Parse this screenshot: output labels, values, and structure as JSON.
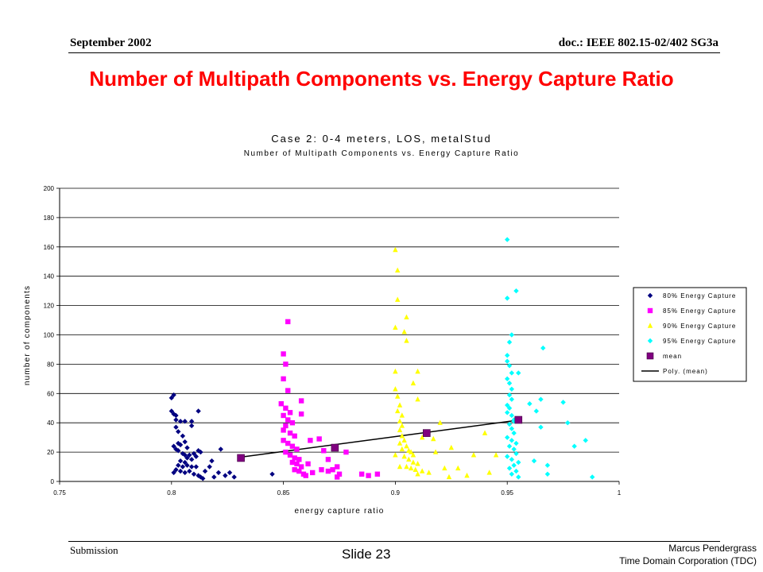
{
  "header": {
    "date": "September 2002",
    "doc": "doc.: IEEE 802.15-02/402 SG3a"
  },
  "slide_title": "Number of Multipath Components vs. Energy Capture Ratio",
  "footer": {
    "submission": "Submission",
    "slide": "Slide 23",
    "author": "Marcus Pendergrass",
    "org": "Time Domain Corporation (TDC)"
  },
  "colors": {
    "title": "#ff0000",
    "s80": "#000080",
    "s85": "#ff00ff",
    "s90": "#ffff00",
    "s95": "#00ffff",
    "mean": "#800080"
  },
  "chart_data": {
    "type": "scatter",
    "title": "Case 2: 0-4 meters, LOS, metalStud",
    "subtitle": "Number of Multipath Components vs. Energy Capture Ratio",
    "xlabel": "energy capture ratio",
    "ylabel": "number of components",
    "xlim": [
      0.75,
      1
    ],
    "ylim": [
      0,
      200
    ],
    "x_ticks": [
      "0.75",
      "0.8",
      "0.85",
      "0.9",
      "0.95",
      "1"
    ],
    "y_ticks": [
      "0",
      "20",
      "40",
      "60",
      "80",
      "100",
      "120",
      "140",
      "160",
      "180",
      "200"
    ],
    "grid": "horizontal",
    "legend_position": "right",
    "series": [
      {
        "name": "80% Energy Capture",
        "marker": "diamond",
        "color": "#000080",
        "points": [
          [
            0.8,
            57
          ],
          [
            0.801,
            59
          ],
          [
            0.8,
            48
          ],
          [
            0.801,
            46
          ],
          [
            0.802,
            45
          ],
          [
            0.802,
            42
          ],
          [
            0.804,
            41
          ],
          [
            0.806,
            41
          ],
          [
            0.809,
            41
          ],
          [
            0.809,
            38
          ],
          [
            0.812,
            48
          ],
          [
            0.802,
            37
          ],
          [
            0.803,
            34
          ],
          [
            0.805,
            31
          ],
          [
            0.806,
            27
          ],
          [
            0.804,
            25
          ],
          [
            0.801,
            24
          ],
          [
            0.802,
            22
          ],
          [
            0.803,
            21
          ],
          [
            0.805,
            19
          ],
          [
            0.806,
            18
          ],
          [
            0.807,
            16
          ],
          [
            0.808,
            18
          ],
          [
            0.81,
            19
          ],
          [
            0.811,
            17
          ],
          [
            0.812,
            21
          ],
          [
            0.813,
            20
          ],
          [
            0.809,
            15
          ],
          [
            0.806,
            13
          ],
          [
            0.804,
            14
          ],
          [
            0.803,
            11
          ],
          [
            0.805,
            10
          ],
          [
            0.807,
            11
          ],
          [
            0.809,
            10
          ],
          [
            0.811,
            10
          ],
          [
            0.802,
            8
          ],
          [
            0.804,
            7
          ],
          [
            0.806,
            6
          ],
          [
            0.808,
            7
          ],
          [
            0.81,
            5
          ],
          [
            0.812,
            4
          ],
          [
            0.813,
            3
          ],
          [
            0.815,
            7
          ],
          [
            0.817,
            10
          ],
          [
            0.818,
            14
          ],
          [
            0.819,
            3
          ],
          [
            0.821,
            6
          ],
          [
            0.822,
            22
          ],
          [
            0.824,
            4
          ],
          [
            0.826,
            6
          ],
          [
            0.828,
            3
          ],
          [
            0.803,
            26
          ],
          [
            0.807,
            23
          ],
          [
            0.801,
            6
          ],
          [
            0.814,
            2
          ],
          [
            0.845,
            5
          ]
        ]
      },
      {
        "name": "85% Energy Capture",
        "marker": "square",
        "color": "#ff00ff",
        "points": [
          [
            0.852,
            109
          ],
          [
            0.85,
            87
          ],
          [
            0.851,
            80
          ],
          [
            0.85,
            70
          ],
          [
            0.852,
            62
          ],
          [
            0.849,
            53
          ],
          [
            0.851,
            50
          ],
          [
            0.853,
            47
          ],
          [
            0.85,
            45
          ],
          [
            0.852,
            42
          ],
          [
            0.854,
            40
          ],
          [
            0.851,
            38
          ],
          [
            0.85,
            35
          ],
          [
            0.853,
            33
          ],
          [
            0.855,
            31
          ],
          [
            0.85,
            28
          ],
          [
            0.852,
            26
          ],
          [
            0.854,
            24
          ],
          [
            0.856,
            22
          ],
          [
            0.851,
            20
          ],
          [
            0.853,
            18
          ],
          [
            0.855,
            16
          ],
          [
            0.857,
            15
          ],
          [
            0.854,
            13
          ],
          [
            0.856,
            12
          ],
          [
            0.858,
            10
          ],
          [
            0.855,
            8
          ],
          [
            0.857,
            7
          ],
          [
            0.859,
            5
          ],
          [
            0.86,
            4
          ],
          [
            0.858,
            55
          ],
          [
            0.858,
            46
          ],
          [
            0.862,
            28
          ],
          [
            0.866,
            29
          ],
          [
            0.868,
            21
          ],
          [
            0.87,
            15
          ],
          [
            0.87,
            7
          ],
          [
            0.872,
            8
          ],
          [
            0.874,
            10
          ],
          [
            0.875,
            5
          ],
          [
            0.878,
            20
          ],
          [
            0.874,
            3
          ],
          [
            0.867,
            8
          ],
          [
            0.885,
            5
          ],
          [
            0.888,
            4
          ],
          [
            0.892,
            5
          ],
          [
            0.861,
            12
          ],
          [
            0.863,
            6
          ]
        ]
      },
      {
        "name": "90% Energy Capture",
        "marker": "triangle",
        "color": "#ffff00",
        "points": [
          [
            0.9,
            158
          ],
          [
            0.901,
            144
          ],
          [
            0.901,
            124
          ],
          [
            0.905,
            112
          ],
          [
            0.9,
            105
          ],
          [
            0.904,
            102
          ],
          [
            0.905,
            96
          ],
          [
            0.9,
            75
          ],
          [
            0.91,
            75
          ],
          [
            0.908,
            67
          ],
          [
            0.9,
            63
          ],
          [
            0.901,
            58
          ],
          [
            0.91,
            56
          ],
          [
            0.901,
            48
          ],
          [
            0.903,
            45
          ],
          [
            0.902,
            41
          ],
          [
            0.903,
            38
          ],
          [
            0.902,
            35
          ],
          [
            0.903,
            31
          ],
          [
            0.904,
            28
          ],
          [
            0.902,
            26
          ],
          [
            0.905,
            24
          ],
          [
            0.903,
            22
          ],
          [
            0.906,
            21
          ],
          [
            0.907,
            20
          ],
          [
            0.908,
            18
          ],
          [
            0.904,
            17
          ],
          [
            0.906,
            15
          ],
          [
            0.908,
            13
          ],
          [
            0.91,
            12
          ],
          [
            0.905,
            10
          ],
          [
            0.907,
            9
          ],
          [
            0.909,
            8
          ],
          [
            0.912,
            7
          ],
          [
            0.91,
            5
          ],
          [
            0.902,
            10
          ],
          [
            0.9,
            18
          ],
          [
            0.92,
            40
          ],
          [
            0.917,
            29
          ],
          [
            0.918,
            20
          ],
          [
            0.925,
            23
          ],
          [
            0.922,
            9
          ],
          [
            0.928,
            9
          ],
          [
            0.932,
            4
          ],
          [
            0.935,
            18
          ],
          [
            0.94,
            33
          ],
          [
            0.942,
            6
          ],
          [
            0.945,
            18
          ],
          [
            0.912,
            30
          ],
          [
            0.915,
            6
          ],
          [
            0.924,
            3
          ],
          [
            0.902,
            52
          ]
        ]
      },
      {
        "name": "95% Energy Capture",
        "marker": "diamond",
        "color": "#00ffff",
        "points": [
          [
            0.95,
            165
          ],
          [
            0.954,
            130
          ],
          [
            0.95,
            125
          ],
          [
            0.952,
            100
          ],
          [
            0.951,
            95
          ],
          [
            0.95,
            86
          ],
          [
            0.95,
            82
          ],
          [
            0.951,
            79
          ],
          [
            0.952,
            74
          ],
          [
            0.95,
            70
          ],
          [
            0.951,
            67
          ],
          [
            0.952,
            63
          ],
          [
            0.951,
            59
          ],
          [
            0.952,
            56
          ],
          [
            0.95,
            52
          ],
          [
            0.951,
            50
          ],
          [
            0.95,
            47
          ],
          [
            0.952,
            45
          ],
          [
            0.953,
            42
          ],
          [
            0.951,
            39
          ],
          [
            0.952,
            36
          ],
          [
            0.953,
            33
          ],
          [
            0.95,
            30
          ],
          [
            0.952,
            28
          ],
          [
            0.954,
            26
          ],
          [
            0.951,
            24
          ],
          [
            0.953,
            22
          ],
          [
            0.954,
            19
          ],
          [
            0.95,
            17
          ],
          [
            0.952,
            15
          ],
          [
            0.955,
            13
          ],
          [
            0.953,
            11
          ],
          [
            0.951,
            9
          ],
          [
            0.954,
            7
          ],
          [
            0.952,
            5
          ],
          [
            0.955,
            3
          ],
          [
            0.955,
            74
          ],
          [
            0.96,
            53
          ],
          [
            0.963,
            48
          ],
          [
            0.965,
            56
          ],
          [
            0.965,
            37
          ],
          [
            0.966,
            91
          ],
          [
            0.962,
            14
          ],
          [
            0.968,
            11
          ],
          [
            0.968,
            5
          ],
          [
            0.975,
            54
          ],
          [
            0.977,
            40
          ],
          [
            0.98,
            24
          ],
          [
            0.985,
            28
          ],
          [
            0.988,
            3
          ],
          [
            0.953,
            41
          ]
        ]
      },
      {
        "name": "mean",
        "marker": "square",
        "color": "#800080",
        "points": [
          [
            0.831,
            16
          ],
          [
            0.873,
            23
          ],
          [
            0.914,
            33
          ],
          [
            0.955,
            42
          ]
        ]
      },
      {
        "name": "Poly. (mean)",
        "marker": "line",
        "color": "#000000",
        "points": [
          [
            0.831,
            16.6
          ],
          [
            0.955,
            41.8
          ]
        ]
      }
    ]
  }
}
